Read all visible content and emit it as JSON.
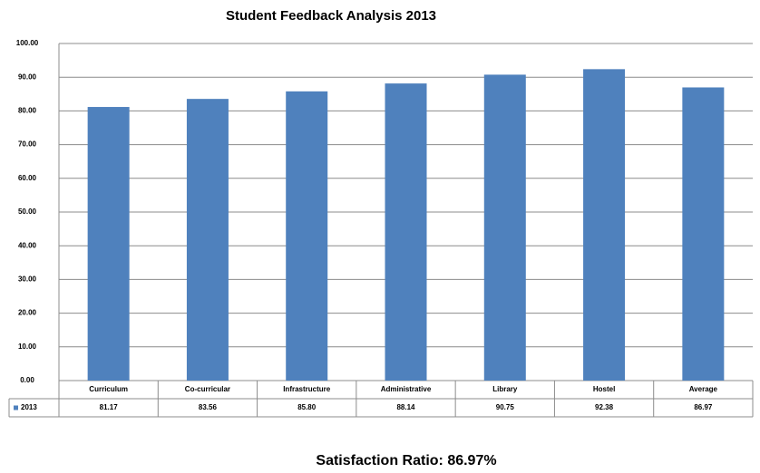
{
  "chart_data": {
    "type": "bar",
    "title": "Student Feedback Analysis 2013",
    "categories": [
      "Curriculum",
      "Co-curricular",
      "Infrastructure",
      "Administrative",
      "Library",
      "Hostel",
      "Average"
    ],
    "series": [
      {
        "name": "2013",
        "color": "#4f81bd",
        "values": [
          81.17,
          83.56,
          85.8,
          88.14,
          90.75,
          92.38,
          86.97
        ],
        "value_labels": [
          "81.17",
          "83.56",
          "85.80",
          "88.14",
          "90.75",
          "92.38",
          "86.97"
        ]
      }
    ],
    "ylim": [
      0,
      100
    ],
    "yticks": [
      {
        "value": 0,
        "label": "0.00"
      },
      {
        "value": 10,
        "label": "10.00"
      },
      {
        "value": 20,
        "label": "20.00"
      },
      {
        "value": 30,
        "label": "30.00"
      },
      {
        "value": 40,
        "label": "40.00"
      },
      {
        "value": 50,
        "label": "50.00"
      },
      {
        "value": 60,
        "label": "60.00"
      },
      {
        "value": 70,
        "label": "70.00"
      },
      {
        "value": 80,
        "label": "80.00"
      },
      {
        "value": 90,
        "label": "90.00"
      },
      {
        "value": 100,
        "label": "100.00"
      }
    ],
    "grid": true,
    "annotation": "Satisfaction Ratio: 86.97%"
  }
}
